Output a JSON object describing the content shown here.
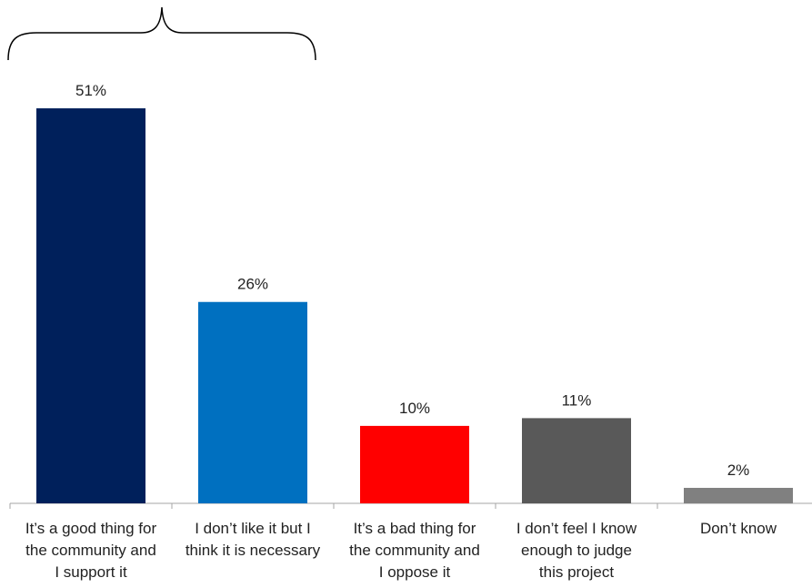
{
  "chart_data": {
    "type": "bar",
    "categories": [
      [
        "It’s a good thing for",
        "the community and",
        "I support it"
      ],
      [
        "I don’t like it but I",
        "think it is necessary"
      ],
      [
        "It’s a bad thing for",
        "the community and",
        "I oppose it"
      ],
      [
        "I don’t feel I know",
        "enough to judge",
        "this project"
      ],
      [
        "Don’t know"
      ]
    ],
    "values": [
      51,
      26,
      10,
      11,
      2
    ],
    "value_labels": [
      "51%",
      "26%",
      "10%",
      "11%",
      "2%"
    ],
    "colors": [
      "#00205b",
      "#0070c0",
      "#ff0000",
      "#595959",
      "#808080"
    ],
    "ylim": [
      0,
      51
    ],
    "grid": false,
    "legend": "none",
    "annotation": "brace spanning first two categories"
  }
}
